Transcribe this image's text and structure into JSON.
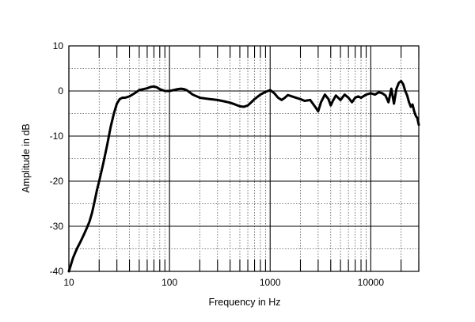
{
  "chart_data": {
    "type": "line",
    "xlabel": "Frequency in Hz",
    "ylabel": "Amplitude in dB",
    "xscale": "log",
    "xlim": [
      10,
      30000
    ],
    "ylim": [
      -40,
      10
    ],
    "x_ticks": [
      {
        "value": 10,
        "label": "10"
      },
      {
        "value": 100,
        "label": "100"
      },
      {
        "value": 1000,
        "label": "1000"
      },
      {
        "value": 10000,
        "label": "10000"
      }
    ],
    "y_ticks": [
      {
        "value": 10,
        "label": "10"
      },
      {
        "value": 0,
        "label": "0"
      },
      {
        "value": -10,
        "label": "-10"
      },
      {
        "value": -20,
        "label": "-20"
      },
      {
        "value": -30,
        "label": "-30"
      },
      {
        "value": -40,
        "label": "-40"
      }
    ],
    "grid": true,
    "line_color": "#000000",
    "series": [
      {
        "x": [
          10,
          11,
          12,
          13,
          14,
          15,
          16,
          17,
          18,
          19,
          20,
          22,
          24,
          26,
          28,
          30,
          32,
          34,
          36,
          40,
          45,
          50,
          55,
          60,
          65,
          70,
          75,
          80,
          90,
          100,
          110,
          120,
          130,
          140,
          150,
          170,
          200,
          250,
          300,
          350,
          400,
          450,
          500,
          550,
          600,
          650,
          700,
          800,
          900,
          1000,
          1100,
          1200,
          1300,
          1400,
          1500,
          1700,
          2000,
          2200,
          2500,
          2800,
          3000,
          3200,
          3500,
          3800,
          4000,
          4200,
          4500,
          5000,
          5500,
          6000,
          6500,
          7000,
          7500,
          8000,
          9000,
          10000,
          11000,
          12000,
          13000,
          14000,
          15000,
          16000,
          17000,
          18000,
          19000,
          20000,
          21000,
          22000,
          23000,
          24000,
          25000,
          26000,
          27000,
          28000,
          29000,
          30000
        ],
        "y": [
          -40,
          -37,
          -35,
          -33.5,
          -32,
          -30.5,
          -29,
          -27,
          -24.5,
          -22,
          -20,
          -16,
          -12,
          -8,
          -5,
          -2.8,
          -1.8,
          -1.5,
          -1.5,
          -1.2,
          -0.5,
          0.2,
          0.4,
          0.6,
          0.9,
          1.0,
          0.8,
          0.4,
          0,
          0,
          0.2,
          0.4,
          0.5,
          0.4,
          0.1,
          -0.8,
          -1.5,
          -1.8,
          -2.0,
          -2.3,
          -2.6,
          -3.0,
          -3.4,
          -3.5,
          -3.2,
          -2.5,
          -1.8,
          -0.8,
          -0.2,
          0.2,
          -0.5,
          -1.5,
          -2.0,
          -1.5,
          -0.9,
          -1.3,
          -1.8,
          -2.2,
          -2.0,
          -3.5,
          -4.5,
          -2.5,
          -0.8,
          -1.8,
          -3.2,
          -2.2,
          -1.0,
          -2.0,
          -0.8,
          -1.5,
          -2.5,
          -1.5,
          -1.2,
          -1.5,
          -0.8,
          -0.5,
          -0.8,
          -0.3,
          -0.5,
          -1.0,
          -2.5,
          0.5,
          -2.8,
          0.5,
          1.8,
          2.2,
          1.5,
          0,
          -1.0,
          -2.5,
          -3.5,
          -3.0,
          -4.5,
          -5.5,
          -6.0,
          -7.5
        ]
      }
    ]
  }
}
